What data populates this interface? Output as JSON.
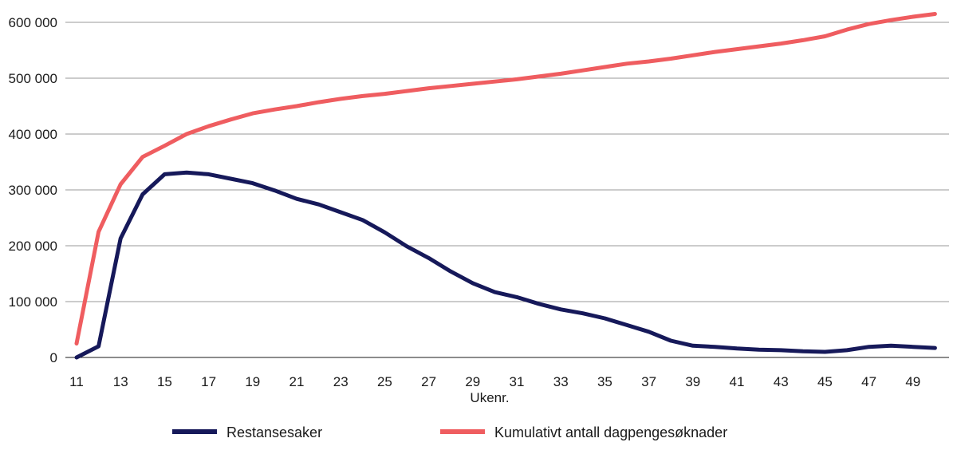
{
  "chart_data": {
    "type": "line",
    "title": "",
    "xlabel": "Ukenr.",
    "ylabel": "",
    "x": [
      11,
      12,
      13,
      14,
      15,
      16,
      17,
      18,
      19,
      20,
      21,
      22,
      23,
      24,
      25,
      26,
      27,
      28,
      29,
      30,
      31,
      32,
      33,
      34,
      35,
      36,
      37,
      38,
      39,
      40,
      41,
      42,
      43,
      44,
      45,
      46,
      47,
      48,
      49,
      50
    ],
    "x_tick_labels": [
      "11",
      "13",
      "15",
      "17",
      "19",
      "21",
      "23",
      "25",
      "27",
      "29",
      "31",
      "33",
      "35",
      "37",
      "39",
      "41",
      "43",
      "45",
      "47",
      "49"
    ],
    "y_tick_labels": [
      "0",
      "100 000",
      "200 000",
      "300 000",
      "400 000",
      "500 000",
      "600 000"
    ],
    "y_ticks": [
      0,
      100000,
      200000,
      300000,
      400000,
      500000,
      600000
    ],
    "ylim": [
      0,
      600000
    ],
    "xlim": [
      11,
      50
    ],
    "grid": "horizontal",
    "legend_position": "bottom",
    "series": [
      {
        "name": "Restansesaker",
        "color": "#16195a",
        "values": [
          0,
          20000,
          213000,
          292000,
          328000,
          331000,
          328000,
          320000,
          312000,
          299000,
          284000,
          274000,
          260000,
          246000,
          224000,
          199000,
          178000,
          154000,
          133000,
          117000,
          108000,
          96000,
          86000,
          79000,
          70000,
          58000,
          46000,
          30000,
          21000,
          19000,
          16000,
          14000,
          13000,
          11000,
          10000,
          13000,
          19000,
          21000,
          19000,
          17000
        ]
      },
      {
        "name": "Kumulativt antall dagpengesøknader",
        "color": "#ef5d60",
        "values": [
          25000,
          225000,
          310000,
          359000,
          379000,
          400000,
          414000,
          426000,
          437000,
          444000,
          450000,
          457000,
          463000,
          468000,
          472000,
          477000,
          482000,
          486000,
          490000,
          494000,
          498000,
          503000,
          508000,
          514000,
          520000,
          526000,
          530000,
          535000,
          541000,
          547000,
          552000,
          557000,
          562000,
          568000,
          575000,
          587000,
          597000,
          604000,
          610000,
          615000
        ]
      }
    ]
  }
}
